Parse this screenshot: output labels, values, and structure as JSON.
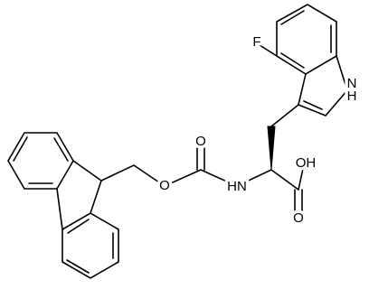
{
  "labels": {
    "fluorine": "F",
    "indole_n": "N",
    "indole_h": "H",
    "carbamate_carbonyl_o": "O",
    "ester_o": "O",
    "amide_nh": "HN",
    "acid_oh": "OH",
    "acid_carbonyl_o": "O"
  }
}
